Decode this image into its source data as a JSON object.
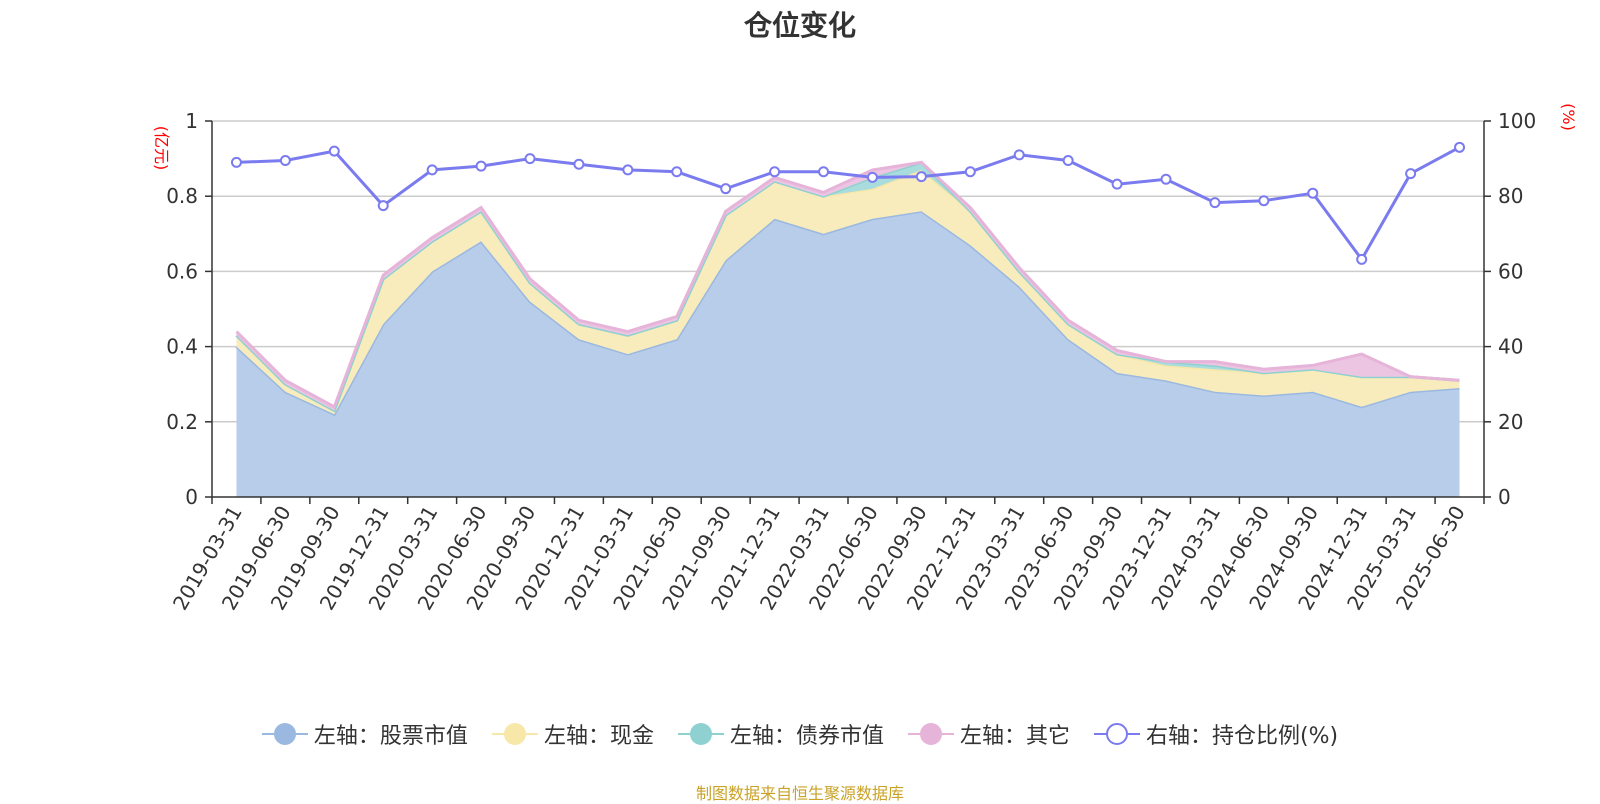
{
  "title": "仓位变化",
  "left_axis_unit": "(亿元)",
  "right_axis_unit": "(%)",
  "source_note": "制图数据来自恒生聚源数据库",
  "legend": [
    {
      "label": "左轴：股票市值",
      "color": "#9bb8e0",
      "icon": "filled-circle-icon"
    },
    {
      "label": "左轴：现金",
      "color": "#f7e7a8",
      "icon": "filled-circle-icon"
    },
    {
      "label": "左轴：债券市值",
      "color": "#8fd1d1",
      "icon": "filled-circle-icon"
    },
    {
      "label": "左轴：其它",
      "color": "#e6b3d9",
      "icon": "filled-circle-icon"
    },
    {
      "label": "右轴：持仓比例(%)",
      "color": "#7b7bf0",
      "icon": "hollow-circle-icon"
    }
  ],
  "chart_data": {
    "type": "area",
    "categories": [
      "2019-03-31",
      "2019-06-30",
      "2019-09-30",
      "2019-12-31",
      "2020-03-31",
      "2020-06-30",
      "2020-09-30",
      "2020-12-31",
      "2021-03-31",
      "2021-06-30",
      "2021-09-30",
      "2021-12-31",
      "2022-03-31",
      "2022-06-30",
      "2022-09-30",
      "2022-12-31",
      "2023-03-31",
      "2023-06-30",
      "2023-09-30",
      "2023-12-31",
      "2024-03-31",
      "2024-06-30",
      "2024-09-30",
      "2024-12-31",
      "2025-03-31",
      "2025-06-30"
    ],
    "left_axis": {
      "min": 0,
      "max": 1,
      "ticks": [
        0,
        0.2,
        0.4,
        0.6,
        0.8,
        1
      ],
      "tick_labels": [
        "0",
        "0.2",
        "0.4",
        "0.6",
        "0.8",
        "1"
      ]
    },
    "right_axis": {
      "min": 0,
      "max": 100,
      "ticks": [
        0,
        20,
        40,
        60,
        80,
        100
      ],
      "tick_labels": [
        "0",
        "20",
        "40",
        "60",
        "80",
        "100"
      ]
    },
    "stacked_series": [
      {
        "name": "左轴：股票市值",
        "color": "#9bb8e0",
        "fill": "#b7cdea",
        "values": [
          0.4,
          0.28,
          0.22,
          0.46,
          0.6,
          0.68,
          0.52,
          0.42,
          0.38,
          0.42,
          0.63,
          0.74,
          0.7,
          0.74,
          0.76,
          0.67,
          0.56,
          0.42,
          0.33,
          0.31,
          0.28,
          0.27,
          0.28,
          0.24,
          0.28,
          0.29
        ]
      },
      {
        "name": "左轴：现金",
        "color": "#f7e7a8",
        "fill": "#f8ecbc",
        "values": [
          0.03,
          0.02,
          0.01,
          0.12,
          0.08,
          0.08,
          0.05,
          0.04,
          0.05,
          0.05,
          0.12,
          0.1,
          0.1,
          0.08,
          0.11,
          0.09,
          0.04,
          0.04,
          0.05,
          0.04,
          0.06,
          0.06,
          0.06,
          0.08,
          0.04,
          0.02
        ]
      },
      {
        "name": "左轴：债券市值",
        "color": "#8fd1d1",
        "fill": "#a9dcdc",
        "values": [
          0,
          0,
          0,
          0,
          0,
          0,
          0,
          0,
          0,
          0,
          0,
          0,
          0,
          0.03,
          0.02,
          0,
          0,
          0,
          0,
          0.01,
          0.01,
          0,
          0,
          0,
          0,
          0
        ]
      },
      {
        "name": "左轴：其它",
        "color": "#e6b3d9",
        "fill": "#ecc5e2",
        "values": [
          0.01,
          0.01,
          0.01,
          0.01,
          0.01,
          0.01,
          0.01,
          0.01,
          0.01,
          0.01,
          0.01,
          0.01,
          0.01,
          0.02,
          0,
          0.01,
          0.01,
          0.01,
          0.01,
          0,
          0.01,
          0.01,
          0.01,
          0.06,
          0,
          0
        ]
      }
    ],
    "line_series": {
      "name": "右轴：持仓比例(%)",
      "color": "#7b7bf0",
      "values": [
        89,
        89.5,
        92,
        77.5,
        87,
        88,
        90,
        88.5,
        87,
        86.5,
        82,
        86.5,
        86.5,
        85,
        85.2,
        86.5,
        91,
        89.5,
        83.2,
        84.5,
        78.3,
        78.8,
        80.8,
        63.2,
        86,
        93
      ]
    },
    "grid": true,
    "legend_position": "bottom"
  }
}
